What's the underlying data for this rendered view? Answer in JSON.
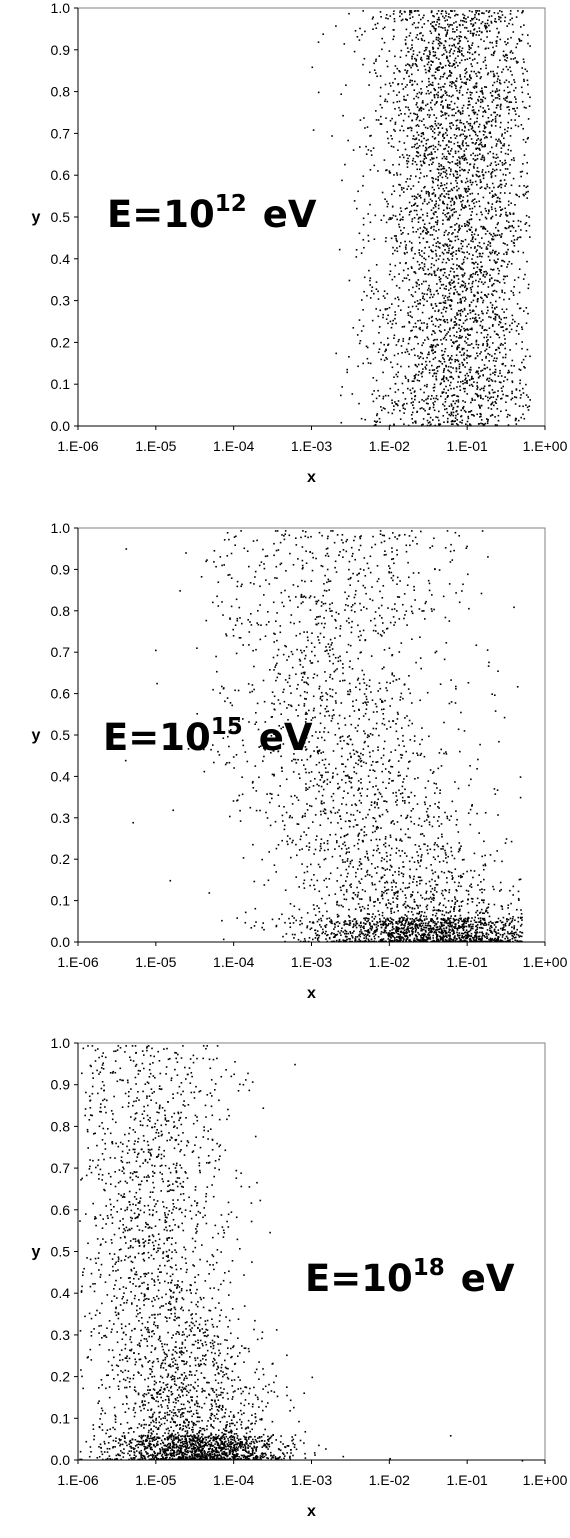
{
  "chart_data": [
    {
      "type": "scatter",
      "xscale": "log",
      "xlabel": "x",
      "ylabel": "y",
      "xlim": [
        1e-06,
        1
      ],
      "ylim": [
        0,
        1
      ],
      "grid": false,
      "xtick_labels": [
        "1.E-06",
        "1.E-05",
        "1.E-04",
        "1.E-03",
        "1.E-02",
        "1.E-01",
        "1.E+00"
      ],
      "ytick_labels": [
        "0.0",
        "0.1",
        "0.2",
        "0.3",
        "0.4",
        "0.5",
        "0.6",
        "0.7",
        "0.8",
        "0.9",
        "1.0"
      ],
      "annotation": {
        "base": "E=10",
        "exponent": "12",
        "unit": "eV"
      },
      "distribution": {
        "x_log10_center": -1.15,
        "x_log10_spread": 0.55,
        "x_log10_min": -3.1,
        "x_log10_max": -0.2,
        "y_shape": "uniform",
        "point_count": 3600
      },
      "series": [
        {
          "points": [
            [
              0.001,
              0.86
            ],
            [
              0.0012,
              0.92
            ],
            [
              0.003,
              0.35
            ],
            [
              0.0045,
              0.28
            ],
            [
              0.01,
              0.5
            ],
            [
              0.05,
              0.05
            ],
            [
              0.1,
              0.98
            ],
            [
              0.2,
              0.5
            ],
            [
              0.3,
              0.2
            ],
            [
              0.5,
              0.8
            ]
          ]
        }
      ]
    },
    {
      "type": "scatter",
      "xscale": "log",
      "xlabel": "x",
      "ylabel": "y",
      "xlim": [
        1e-06,
        1
      ],
      "ylim": [
        0,
        1
      ],
      "grid": false,
      "xtick_labels": [
        "1.E-06",
        "1.E-05",
        "1.E-04",
        "1.E-03",
        "1.E-02",
        "1.E-01",
        "1.E+00"
      ],
      "ytick_labels": [
        "0.0",
        "0.1",
        "0.2",
        "0.3",
        "0.4",
        "0.5",
        "0.6",
        "0.7",
        "0.8",
        "0.9",
        "1.0"
      ],
      "annotation": {
        "base": "E=10",
        "exponent": "15",
        "unit": "eV"
      },
      "distribution": {
        "x_log10_center_at_y0": -1.4,
        "x_log10_center_at_y1": -2.7,
        "x_log10_spread": 0.8,
        "x_log10_min": -5.6,
        "x_log10_max": -0.3,
        "y_shape": "dense-near-zero",
        "point_count": 3400
      },
      "series": [
        {
          "points": [
            [
              4e-06,
              0.44
            ],
            [
              5e-06,
              0.29
            ],
            [
              1.5e-05,
              0.15
            ],
            [
              2e-05,
              0.85
            ],
            [
              0.0001,
              0.98
            ],
            [
              0.001,
              0.5
            ],
            [
              0.003,
              0.6
            ],
            [
              0.01,
              0.2
            ],
            [
              0.05,
              0.03
            ],
            [
              0.3,
              0.01
            ]
          ]
        }
      ]
    },
    {
      "type": "scatter",
      "xscale": "log",
      "xlabel": "x",
      "ylabel": "y",
      "xlim": [
        1e-06,
        1
      ],
      "ylim": [
        0,
        1
      ],
      "grid": false,
      "xtick_labels": [
        "1.E-06",
        "1.E-05",
        "1.E-04",
        "1.E-03",
        "1.E-02",
        "1.E-01",
        "1.E+00"
      ],
      "ytick_labels": [
        "0.0",
        "0.1",
        "0.2",
        "0.3",
        "0.4",
        "0.5",
        "0.6",
        "0.7",
        "0.8",
        "0.9",
        "1.0"
      ],
      "annotation": {
        "base": "E=10",
        "exponent": "18",
        "unit": "eV"
      },
      "distribution": {
        "x_log10_center_at_y0": -4.4,
        "x_log10_center_at_y1": -5.1,
        "x_log10_spread": 0.55,
        "x_log10_min": -6.0,
        "x_log10_max": -0.1,
        "y_shape": "dense-near-zero",
        "point_count": 3400
      },
      "series": [
        {
          "points": [
            [
              2e-06,
              0.97
            ],
            [
              1e-05,
              0.5
            ],
            [
              5e-05,
              0.1
            ],
            [
              0.0001,
              0.05
            ],
            [
              0.001,
              0.2
            ],
            [
              0.0006,
              0.95
            ],
            [
              0.0025,
              0.01
            ],
            [
              0.01,
              0.005
            ],
            [
              0.06,
              0.06
            ],
            [
              0.5,
              0.0
            ]
          ]
        }
      ]
    }
  ]
}
